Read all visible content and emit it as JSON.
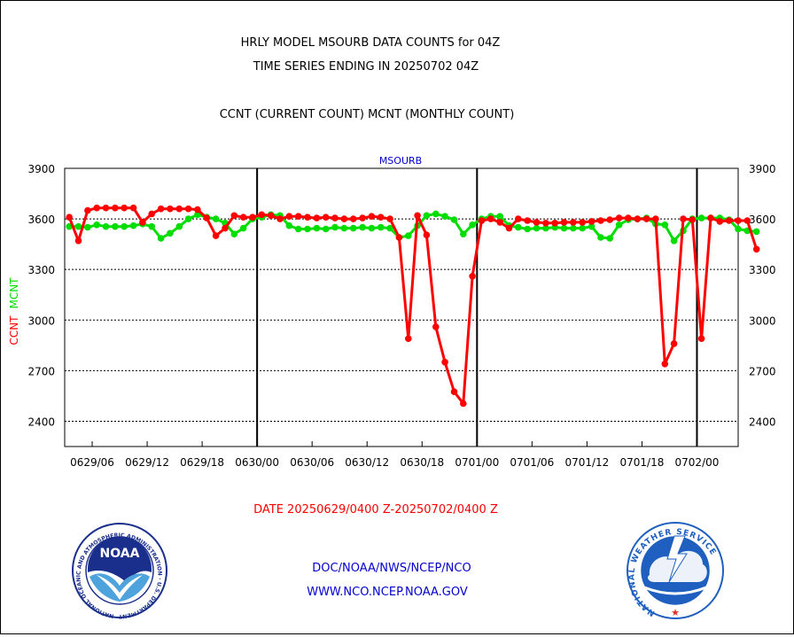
{
  "header": {
    "title_line1": "HRLY MODEL MSOURB DATA COUNTS for 04Z",
    "title_line2": "TIME SERIES ENDING IN 20250702 04Z",
    "subtitle": "CCNT (CURRENT COUNT) MCNT (MONTHLY COUNT)"
  },
  "footer": {
    "date_range": "DATE 20250629/0400 Z-20250702/0400 Z",
    "org_path": "DOC/NOAA/NWS/NCEP/NCO",
    "website": "WWW.NCO.NCEP.NOAA.GOV"
  },
  "logos": {
    "noaa_text": "NOAA",
    "noaa_ring": "NATIONAL OCEANIC AND ATMOSPHERIC ADMINISTRATION · U.S. DEPARTMENT OF COMMERCE",
    "nws_ring": "NATIONAL WEATHER SERVICE"
  },
  "colors": {
    "ccnt": "#ff0000",
    "mcnt": "#00dd00",
    "label_blue": "#0000cc",
    "noaa_blue": "#1a2f8c",
    "nws_blue": "#1f5fbf"
  },
  "chart_data": {
    "type": "line",
    "title": "MSOURB",
    "ylabel_ccnt": "CCNT",
    "ylabel_mcnt": "MCNT",
    "ylim": [
      2250,
      3900
    ],
    "yticks": [
      2400,
      2700,
      3000,
      3300,
      3600,
      3900
    ],
    "x_hours_range": [
      -1,
      72.5
    ],
    "xticks": [
      {
        "hour": 2,
        "label": "0629/06"
      },
      {
        "hour": 8,
        "label": "0629/12"
      },
      {
        "hour": 14,
        "label": "0629/18"
      },
      {
        "hour": 20,
        "label": "0630/00"
      },
      {
        "hour": 26,
        "label": "0630/06"
      },
      {
        "hour": 32,
        "label": "0630/12"
      },
      {
        "hour": 38,
        "label": "0630/18"
      },
      {
        "hour": 44,
        "label": "0701/00"
      },
      {
        "hour": 50,
        "label": "0701/06"
      },
      {
        "hour": 56,
        "label": "0701/12"
      },
      {
        "hour": 62,
        "label": "0701/18"
      },
      {
        "hour": 68,
        "label": "0702/00"
      }
    ],
    "day_boundaries": [
      20,
      44,
      68
    ],
    "grid": true,
    "series": [
      {
        "name": "CCNT",
        "color": "#ff0000",
        "values": [
          3610,
          3470,
          3650,
          3665,
          3665,
          3665,
          3665,
          3665,
          3580,
          3630,
          3660,
          3660,
          3660,
          3660,
          3655,
          3605,
          3500,
          3545,
          3620,
          3610,
          3610,
          3625,
          3620,
          3600,
          3615,
          3615,
          3610,
          3605,
          3610,
          3605,
          3600,
          3600,
          3605,
          3615,
          3610,
          3600,
          3490,
          2890,
          3620,
          3505,
          2960,
          2750,
          2575,
          2505,
          3260,
          3590,
          3600,
          3580,
          3545,
          3600,
          3590,
          3580,
          3575,
          3575,
          3580,
          3580,
          3580,
          3585,
          3590,
          3595,
          3605,
          3605,
          3600,
          3600,
          3600,
          2740,
          2860,
          3600,
          3595,
          2890,
          3605,
          3585,
          3590,
          3590,
          3590,
          3420
        ]
      },
      {
        "name": "MCNT",
        "color": "#00dd00",
        "values": [
          3555,
          3555,
          3550,
          3565,
          3555,
          3555,
          3555,
          3560,
          3570,
          3555,
          3485,
          3515,
          3555,
          3600,
          3625,
          3610,
          3600,
          3575,
          3510,
          3545,
          3600,
          3610,
          3625,
          3620,
          3560,
          3540,
          3540,
          3545,
          3540,
          3550,
          3545,
          3545,
          3550,
          3545,
          3550,
          3545,
          3490,
          3500,
          3560,
          3620,
          3630,
          3615,
          3595,
          3510,
          3565,
          3600,
          3615,
          3615,
          3560,
          3550,
          3540,
          3545,
          3545,
          3550,
          3545,
          3545,
          3545,
          3555,
          3490,
          3485,
          3565,
          3595,
          3600,
          3605,
          3570,
          3565,
          3470,
          3530,
          3600,
          3605,
          3605,
          3605,
          3595,
          3540,
          3530,
          3525
        ]
      }
    ]
  }
}
